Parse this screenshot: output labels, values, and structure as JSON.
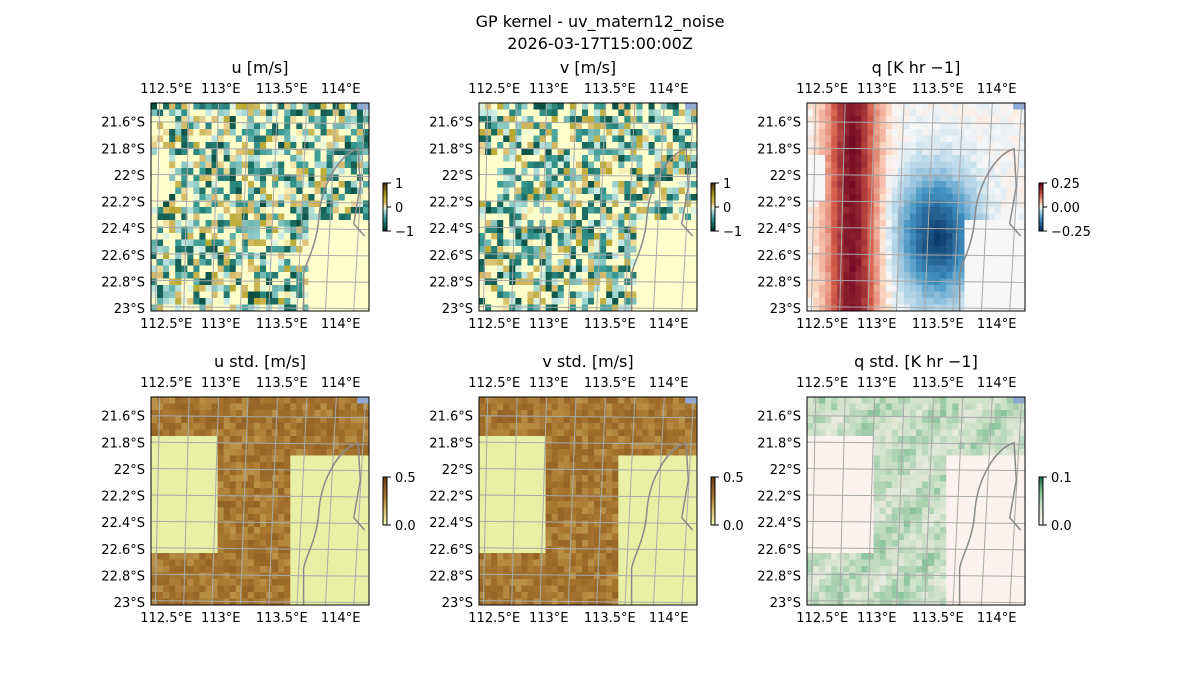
{
  "figure": {
    "title_line1": "GP kernel - uv_matern12_noise",
    "title_line2": "2026-03-17T15:00:00Z"
  },
  "chart_data": [
    {
      "type": "heatmap",
      "id": "u",
      "title": "u [m/s]",
      "field": "diverging",
      "colormap": "BrBG",
      "xticks": [
        "112.5°E",
        "113°E",
        "113.5°E",
        "114°E"
      ],
      "yticks": [
        "21.6°S",
        "21.8°S",
        "22°S",
        "22.2°S",
        "22.4°S",
        "22.6°S",
        "22.8°S",
        "23°S"
      ],
      "colorbar": {
        "ticks": [
          "1",
          "0",
          "−1"
        ],
        "range": [
          -1,
          1
        ]
      }
    },
    {
      "type": "heatmap",
      "id": "v",
      "title": "v [m/s]",
      "field": "diverging",
      "colormap": "BrBG",
      "xticks": [
        "112.5°E",
        "113°E",
        "113.5°E",
        "114°E"
      ],
      "yticks": [
        "21.6°S",
        "21.8°S",
        "22°S",
        "22.2°S",
        "22.4°S",
        "22.6°S",
        "22.8°S",
        "23°S"
      ],
      "colorbar": {
        "ticks": [
          "1",
          "0",
          "−1"
        ],
        "range": [
          -1,
          1
        ]
      }
    },
    {
      "type": "heatmap",
      "id": "q",
      "title": "q [K hr −1]",
      "field": "diverging",
      "colormap": "RdBu_r",
      "xticks": [
        "112.5°E",
        "113°E",
        "113.5°E",
        "114°E"
      ],
      "yticks": [
        "21.6°S",
        "21.8°S",
        "22°S",
        "22.2°S",
        "22.4°S",
        "22.6°S",
        "22.8°S",
        "23°S"
      ],
      "colorbar": {
        "ticks": [
          "0.25",
          "0.00",
          "−0.25"
        ],
        "range": [
          -0.25,
          0.25
        ]
      }
    },
    {
      "type": "heatmap",
      "id": "u_std",
      "title": "u std. [m/s]",
      "field": "sequential",
      "colormap": "brown",
      "xticks": [
        "112.5°E",
        "113°E",
        "113.5°E",
        "114°E"
      ],
      "yticks": [
        "21.6°S",
        "21.8°S",
        "22°S",
        "22.2°S",
        "22.4°S",
        "22.6°S",
        "22.8°S",
        "23°S"
      ],
      "colorbar": {
        "ticks": [
          "0.5",
          "0.0"
        ],
        "range": [
          0,
          0.5
        ]
      }
    },
    {
      "type": "heatmap",
      "id": "v_std",
      "title": "v std. [m/s]",
      "field": "sequential",
      "colormap": "brown",
      "xticks": [
        "112.5°E",
        "113°E",
        "113.5°E",
        "114°E"
      ],
      "yticks": [
        "21.6°S",
        "21.8°S",
        "22°S",
        "22.2°S",
        "22.4°S",
        "22.6°S",
        "22.8°S",
        "23°S"
      ],
      "colorbar": {
        "ticks": [
          "0.5",
          "0.0"
        ],
        "range": [
          0,
          0.5
        ]
      }
    },
    {
      "type": "heatmap",
      "id": "q_std",
      "title": "q std. [K hr −1]",
      "field": "sequential",
      "colormap": "green",
      "xticks": [
        "112.5°E",
        "113°E",
        "113.5°E",
        "114°E"
      ],
      "yticks": [
        "21.6°S",
        "21.8°S",
        "22°S",
        "22.2°S",
        "22.4°S",
        "22.6°S",
        "22.8°S",
        "23°S"
      ],
      "colorbar": {
        "ticks": [
          "0.1",
          "0.0"
        ],
        "range": [
          0,
          0.1
        ]
      }
    }
  ]
}
